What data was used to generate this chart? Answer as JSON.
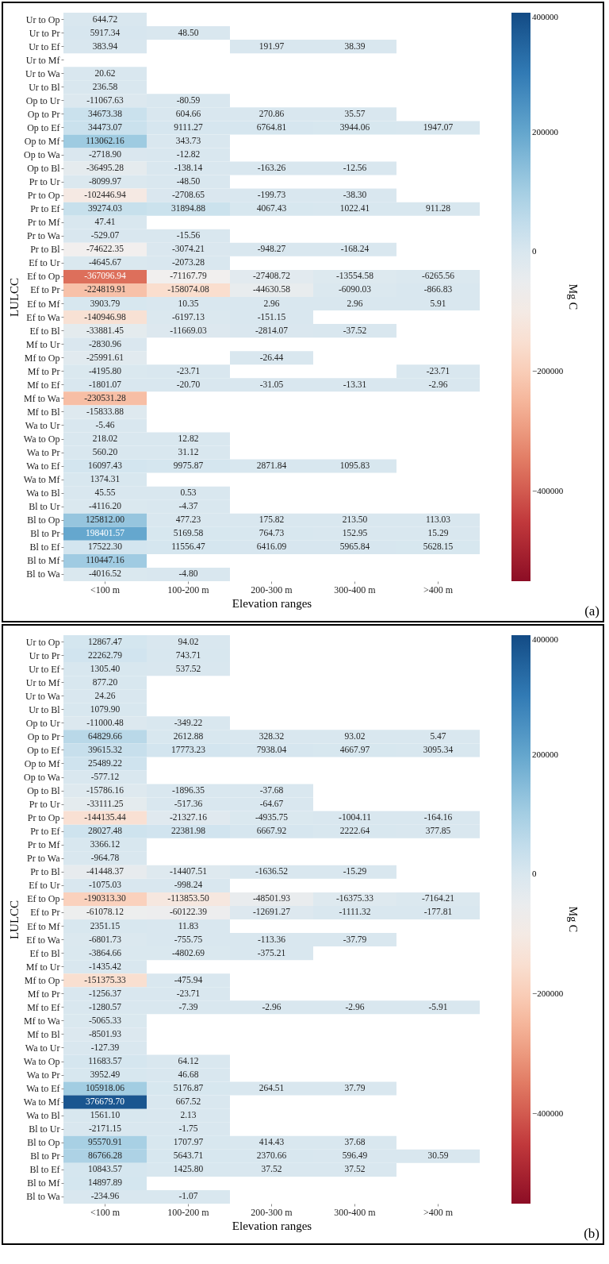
{
  "chart_data": [
    {
      "type": "heatmap",
      "xlabel": "Elevation ranges",
      "ylabel": "LULCC",
      "clabel": "Mg C",
      "clim": [
        -550000,
        400000
      ],
      "cticks": [
        -400000,
        -200000,
        0,
        200000,
        400000
      ],
      "annotations": [
        "(a)"
      ],
      "cell_labels": [
        [
          "644.72",
          null,
          null,
          null,
          null
        ],
        [
          "5917.34",
          "48.50",
          null,
          null,
          null
        ],
        [
          "383.94",
          null,
          "191.97",
          "38.39",
          null
        ],
        [
          null,
          null,
          null,
          null,
          null
        ],
        [
          "20.62",
          null,
          null,
          null,
          null
        ],
        [
          "236.58",
          null,
          null,
          null,
          null
        ],
        [
          "-11067.63",
          "-80.59",
          null,
          null,
          null
        ],
        [
          "34673.38",
          "604.66",
          "270.86",
          "35.57",
          null
        ],
        [
          "34473.07",
          "9111.27",
          "6764.81",
          "3944.06",
          "1947.07"
        ],
        [
          "113062.16",
          "343.73",
          null,
          null,
          null
        ],
        [
          "-2718.90",
          "-12.82",
          null,
          null,
          null
        ],
        [
          "-36495.28",
          "-138.14",
          "-163.26",
          "-12.56",
          null
        ],
        [
          "-8099.97",
          "-48.50",
          null,
          null,
          null
        ],
        [
          "-102446.94",
          "-2708.65",
          "-199.73",
          "-38.30",
          null
        ],
        [
          "39274.03",
          "31894.88",
          "4067.43",
          "1022.41",
          "911.28"
        ],
        [
          "47.41",
          null,
          null,
          null,
          null
        ],
        [
          "-529.07",
          "-15.56",
          null,
          null,
          null
        ],
        [
          "-74622.35",
          "-3074.21",
          "-948.27",
          "-168.24",
          null
        ],
        [
          "-4645.67",
          "-2073.28",
          null,
          null,
          null
        ],
        [
          "-367096.94",
          "-71167.79",
          "-27408.72",
          "-13554.58",
          "-6265.56"
        ],
        [
          "-224819.91",
          "-158074.08",
          "-44630.58",
          "-6090.03",
          "-866.83"
        ],
        [
          "3903.79",
          "10.35",
          "2.96",
          "2.96",
          "5.91"
        ],
        [
          "-140946.98",
          "-6197.13",
          "-151.15",
          null,
          null
        ],
        [
          "-33881.45",
          "-11669.03",
          "-2814.07",
          "-37.52",
          null
        ],
        [
          "-2830.96",
          null,
          null,
          null,
          null
        ],
        [
          "-25991.61",
          null,
          "-26.44",
          null,
          null
        ],
        [
          "-4195.80",
          "-23.71",
          null,
          null,
          "-23.71"
        ],
        [
          "-1801.07",
          "-20.70",
          "-31.05",
          "-13.31",
          "-2.96"
        ],
        [
          "-230531.28",
          null,
          null,
          null,
          null
        ],
        [
          "-15833.88",
          null,
          null,
          null,
          null
        ],
        [
          "-5.46",
          null,
          null,
          null,
          null
        ],
        [
          "218.02",
          "12.82",
          null,
          null,
          null
        ],
        [
          "560.20",
          "31.12",
          null,
          null,
          null
        ],
        [
          "16097.43",
          "9975.87",
          "2871.84",
          "1095.83",
          null
        ],
        [
          "1374.31",
          null,
          null,
          null,
          null
        ],
        [
          "45.55",
          "0.53",
          null,
          null,
          null
        ],
        [
          "-4116.20",
          "-4.37",
          null,
          null,
          null
        ],
        [
          "125812.00",
          "477.23",
          "175.82",
          "213.50",
          "113.03"
        ],
        [
          "198401.57",
          "5169.58",
          "764.73",
          "152.95",
          "15.29"
        ],
        [
          "17522.30",
          "11556.47",
          "6416.09",
          "5965.84",
          "5628.15"
        ],
        [
          "110447.16",
          null,
          null,
          null,
          null
        ],
        [
          "-4016.52",
          "-4.80",
          null,
          null,
          null
        ]
      ],
      "categories": [
        "<100 m",
        "100-200 m",
        "200-300 m",
        "300-400 m",
        ">400 m"
      ],
      "y_categories": [
        "Ur to Op",
        "Ur to Pr",
        "Ur to Ef",
        "Ur to Mf",
        "Ur to Wa",
        "Ur to Bl",
        "Op to Ur",
        "Op to Pr",
        "Op to Ef",
        "Op to Mf",
        "Op to Wa",
        "Op to Bl",
        "Pr to Ur",
        "Pr to Op",
        "Pr to Ef",
        "Pr to Mf",
        "Pr to Wa",
        "Pr to Bl",
        "Ef to Ur",
        "Ef to Op",
        "Ef to Pr",
        "Ef to Mf",
        "Ef to Wa",
        "Ef to Bl",
        "Mf to Ur",
        "Mf to Op",
        "Mf to Pr",
        "Mf to Ef",
        "Mf to Wa",
        "Mf to Bl",
        "Wa to Ur",
        "Wa to Op",
        "Wa to Pr",
        "Wa to Ef",
        "Wa to Mf",
        "Wa to Bl",
        "Bl to Ur",
        "Bl to Op",
        "Bl to Pr",
        "Bl to Ef",
        "Bl to Mf",
        "Bl to Wa"
      ],
      "cells": [
        [
          644.72,
          null,
          null,
          null,
          null
        ],
        [
          5917.34,
          48.5,
          null,
          null,
          null
        ],
        [
          383.94,
          null,
          191.97,
          38.39,
          null
        ],
        [
          null,
          null,
          null,
          null,
          null
        ],
        [
          20.62,
          null,
          null,
          null,
          null
        ],
        [
          236.58,
          null,
          null,
          null,
          null
        ],
        [
          -11067.63,
          -80.59,
          null,
          null,
          null
        ],
        [
          34673.38,
          604.66,
          270.86,
          35.57,
          null
        ],
        [
          34473.07,
          9111.27,
          6764.81,
          3944.06,
          1947.07
        ],
        [
          113062.16,
          343.73,
          null,
          null,
          null
        ],
        [
          -2718.9,
          -12.82,
          null,
          null,
          null
        ],
        [
          -36495.28,
          -138.14,
          -163.26,
          -12.56,
          null
        ],
        [
          -8099.97,
          -48.5,
          null,
          null,
          null
        ],
        [
          -102446.94,
          -2708.65,
          -199.73,
          -38.3,
          null
        ],
        [
          39274.03,
          31894.88,
          4067.43,
          1022.41,
          911.28
        ],
        [
          47.41,
          null,
          null,
          null,
          null
        ],
        [
          -529.07,
          -15.56,
          null,
          null,
          null
        ],
        [
          -74622.35,
          -3074.21,
          -948.27,
          -168.24,
          null
        ],
        [
          -4645.67,
          -2073.28,
          null,
          null,
          null
        ],
        [
          -367096.94,
          -71167.79,
          -27408.72,
          -13554.58,
          -6265.56
        ],
        [
          -224819.91,
          -158074.08,
          -44630.58,
          -6090.03,
          -866.83
        ],
        [
          3903.79,
          10.35,
          2.96,
          2.96,
          5.91
        ],
        [
          -140946.98,
          -6197.13,
          -151.15,
          null,
          null
        ],
        [
          -33881.45,
          -11669.03,
          -2814.07,
          -37.52,
          null
        ],
        [
          -2830.96,
          null,
          null,
          null,
          null
        ],
        [
          -25991.61,
          null,
          -26.44,
          null,
          null
        ],
        [
          -4195.8,
          -23.71,
          null,
          null,
          -23.71
        ],
        [
          -1801.07,
          -20.7,
          -31.05,
          -13.31,
          -2.96
        ],
        [
          -230531.28,
          null,
          null,
          null,
          null
        ],
        [
          -15833.88,
          null,
          null,
          null,
          null
        ],
        [
          -5.46,
          null,
          null,
          null,
          null
        ],
        [
          218.02,
          12.82,
          null,
          null,
          null
        ],
        [
          560.2,
          31.12,
          null,
          null,
          null
        ],
        [
          16097.43,
          9975.87,
          2871.84,
          1095.83,
          null
        ],
        [
          1374.31,
          null,
          null,
          null,
          null
        ],
        [
          45.55,
          0.53,
          null,
          null,
          null
        ],
        [
          -4116.2,
          -4.37,
          null,
          null,
          null
        ],
        [
          125812.0,
          477.23,
          175.82,
          213.5,
          113.03
        ],
        [
          198401.57,
          5169.58,
          764.73,
          152.95,
          15.29
        ],
        [
          17522.3,
          11556.47,
          6416.09,
          5965.84,
          5628.15
        ],
        [
          110447.16,
          null,
          null,
          null,
          null
        ],
        [
          -4016.52,
          -4.8,
          null,
          null,
          null
        ]
      ]
    },
    {
      "type": "heatmap",
      "xlabel": "Elevation ranges",
      "ylabel": "LULCC",
      "clabel": "Mg C",
      "clim": [
        -550000,
        400000
      ],
      "cticks": [
        -400000,
        -200000,
        0,
        200000,
        400000
      ],
      "annotations": [
        "(b)"
      ],
      "cell_labels": [
        [
          "12867.47",
          "94.02",
          null,
          null,
          null
        ],
        [
          "22262.79",
          "743.71",
          null,
          null,
          null
        ],
        [
          "1305.40",
          "537.52",
          null,
          null,
          null
        ],
        [
          "877.20",
          null,
          null,
          null,
          null
        ],
        [
          "24.26",
          null,
          null,
          null,
          null
        ],
        [
          "1079.90",
          null,
          null,
          null,
          null
        ],
        [
          "-11000.48",
          "-349.22",
          null,
          null,
          null
        ],
        [
          "64829.66",
          "2612.88",
          "328.32",
          "93.02",
          "5.47"
        ],
        [
          "39615.32",
          "17773.23",
          "7938.04",
          "4667.97",
          "3095.34"
        ],
        [
          "25489.22",
          null,
          null,
          null,
          null
        ],
        [
          "-577.12",
          null,
          null,
          null,
          null
        ],
        [
          "-15786.16",
          "-1896.35",
          "-37.68",
          null,
          null
        ],
        [
          "-33111.25",
          "-517.36",
          "-64.67",
          null,
          null
        ],
        [
          "-144135.44",
          "-21327.16",
          "-4935.75",
          "-1004.11",
          "-164.16"
        ],
        [
          "28027.48",
          "22381.98",
          "6667.92",
          "2222.64",
          "377.85"
        ],
        [
          "3366.12",
          null,
          null,
          null,
          null
        ],
        [
          "-964.78",
          null,
          null,
          null,
          null
        ],
        [
          "-41448.37",
          "-14407.51",
          "-1636.52",
          "-15.29",
          null
        ],
        [
          "-1075.03",
          "-998.24",
          null,
          null,
          null
        ],
        [
          "-190313.30",
          "-113853.50",
          "-48501.93",
          "-16375.33",
          "-7164.21"
        ],
        [
          "-61078.12",
          "-60122.39",
          "-12691.27",
          "-1111.32",
          "-177.81"
        ],
        [
          "2351.15",
          "11.83",
          null,
          null,
          null
        ],
        [
          "-6801.73",
          "-755.75",
          "-113.36",
          "-37.79",
          null
        ],
        [
          "-3864.66",
          "-4802.69",
          "-375.21",
          null,
          null
        ],
        [
          "-1435.42",
          null,
          null,
          null,
          null
        ],
        [
          "-151375.33",
          "-475.94",
          null,
          null,
          null
        ],
        [
          "-1256.37",
          "-23.71",
          null,
          null,
          null
        ],
        [
          "-1280.57",
          "-7.39",
          "-2.96",
          "-2.96",
          "-5.91"
        ],
        [
          "-5065.33",
          null,
          null,
          null,
          null
        ],
        [
          "-8501.93",
          null,
          null,
          null,
          null
        ],
        [
          "-127.39",
          null,
          null,
          null,
          null
        ],
        [
          "11683.57",
          "64.12",
          null,
          null,
          null
        ],
        [
          "3952.49",
          "46.68",
          null,
          null,
          null
        ],
        [
          "105918.06",
          "5176.87",
          "264.51",
          "37.79",
          null
        ],
        [
          "376679.70",
          "667.52",
          null,
          null,
          null
        ],
        [
          "1561.10",
          "2.13",
          null,
          null,
          null
        ],
        [
          "-2171.15",
          "-1.75",
          null,
          null,
          null
        ],
        [
          "95570.91",
          "1707.97",
          "414.43",
          "37.68",
          null
        ],
        [
          "86766.28",
          "5643.71",
          "2370.66",
          "596.49",
          "30.59"
        ],
        [
          "10843.57",
          "1425.80",
          "37.52",
          "37.52",
          null
        ],
        [
          "14897.89",
          null,
          null,
          null,
          null
        ],
        [
          "-234.96",
          "-1.07",
          null,
          null,
          null
        ]
      ],
      "categories": [
        "<100 m",
        "100-200 m",
        "200-300 m",
        "300-400 m",
        ">400 m"
      ],
      "y_categories": [
        "Ur to Op",
        "Ur to Pr",
        "Ur to Ef",
        "Ur to Mf",
        "Ur to Wa",
        "Ur to Bl",
        "Op to Ur",
        "Op to Pr",
        "Op to Ef",
        "Op to Mf",
        "Op to Wa",
        "Op to Bl",
        "Pr to Ur",
        "Pr to Op",
        "Pr to Ef",
        "Pr to Mf",
        "Pr to Wa",
        "Pr to Bl",
        "Ef to Ur",
        "Ef to Op",
        "Ef to Pr",
        "Ef to Mf",
        "Ef to Wa",
        "Ef to Bl",
        "Mf to Ur",
        "Mf to Op",
        "Mf to Pr",
        "Mf to Ef",
        "Mf to Wa",
        "Mf to Bl",
        "Wa to Ur",
        "Wa to Op",
        "Wa to Pr",
        "Wa to Ef",
        "Wa to Mf",
        "Wa to Bl",
        "Bl to Ur",
        "Bl to Op",
        "Bl to Pr",
        "Bl to Ef",
        "Bl to Mf",
        "Bl to Wa"
      ],
      "cells": [
        [
          12867.47,
          94.02,
          null,
          null,
          null
        ],
        [
          22262.79,
          743.71,
          null,
          null,
          null
        ],
        [
          1305.4,
          537.52,
          null,
          null,
          null
        ],
        [
          877.2,
          null,
          null,
          null,
          null
        ],
        [
          24.26,
          null,
          null,
          null,
          null
        ],
        [
          1079.9,
          null,
          null,
          null,
          null
        ],
        [
          -11000.48,
          -349.22,
          null,
          null,
          null
        ],
        [
          64829.66,
          2612.88,
          328.32,
          93.02,
          5.47
        ],
        [
          39615.32,
          17773.23,
          7938.04,
          4667.97,
          3095.34
        ],
        [
          25489.22,
          null,
          null,
          null,
          null
        ],
        [
          -577.12,
          null,
          null,
          null,
          null
        ],
        [
          -15786.16,
          -1896.35,
          -37.68,
          null,
          null
        ],
        [
          -33111.25,
          -517.36,
          -64.67,
          null,
          null
        ],
        [
          -144135.44,
          -21327.16,
          -4935.75,
          -1004.11,
          -164.16
        ],
        [
          28027.48,
          22381.98,
          6667.92,
          2222.64,
          377.85
        ],
        [
          3366.12,
          null,
          null,
          null,
          null
        ],
        [
          -964.78,
          null,
          null,
          null,
          null
        ],
        [
          -41448.37,
          -14407.51,
          -1636.52,
          -15.29,
          null
        ],
        [
          -1075.03,
          -998.24,
          null,
          null,
          null
        ],
        [
          -190313.3,
          -113853.5,
          -48501.93,
          -16375.33,
          -7164.21
        ],
        [
          -61078.12,
          -60122.39,
          -12691.27,
          -1111.32,
          -177.81
        ],
        [
          2351.15,
          11.83,
          null,
          null,
          null
        ],
        [
          -6801.73,
          -755.75,
          -113.36,
          -37.79,
          null
        ],
        [
          -3864.66,
          -4802.69,
          -375.21,
          null,
          null
        ],
        [
          -1435.42,
          null,
          null,
          null,
          null
        ],
        [
          -151375.33,
          -475.94,
          null,
          null,
          null
        ],
        [
          -1256.37,
          -23.71,
          null,
          null,
          null
        ],
        [
          -1280.57,
          -7.39,
          -2.96,
          -2.96,
          -5.91
        ],
        [
          -5065.33,
          null,
          null,
          null,
          null
        ],
        [
          -8501.93,
          null,
          null,
          null,
          null
        ],
        [
          -127.39,
          null,
          null,
          null,
          null
        ],
        [
          11683.57,
          64.12,
          null,
          null,
          null
        ],
        [
          3952.49,
          46.68,
          null,
          null,
          null
        ],
        [
          105918.06,
          5176.87,
          264.51,
          37.79,
          null
        ],
        [
          376679.7,
          667.52,
          null,
          null,
          null
        ],
        [
          1561.1,
          2.13,
          null,
          null,
          null
        ],
        [
          -2171.15,
          -1.75,
          null,
          null,
          null
        ],
        [
          95570.91,
          1707.97,
          414.43,
          37.68,
          null
        ],
        [
          86766.28,
          5643.71,
          2370.66,
          596.49,
          30.59
        ],
        [
          10843.57,
          1425.8,
          37.52,
          37.52,
          null
        ],
        [
          14897.89,
          null,
          null,
          null,
          null
        ],
        [
          -234.96,
          -1.07,
          null,
          null,
          null
        ]
      ]
    }
  ]
}
